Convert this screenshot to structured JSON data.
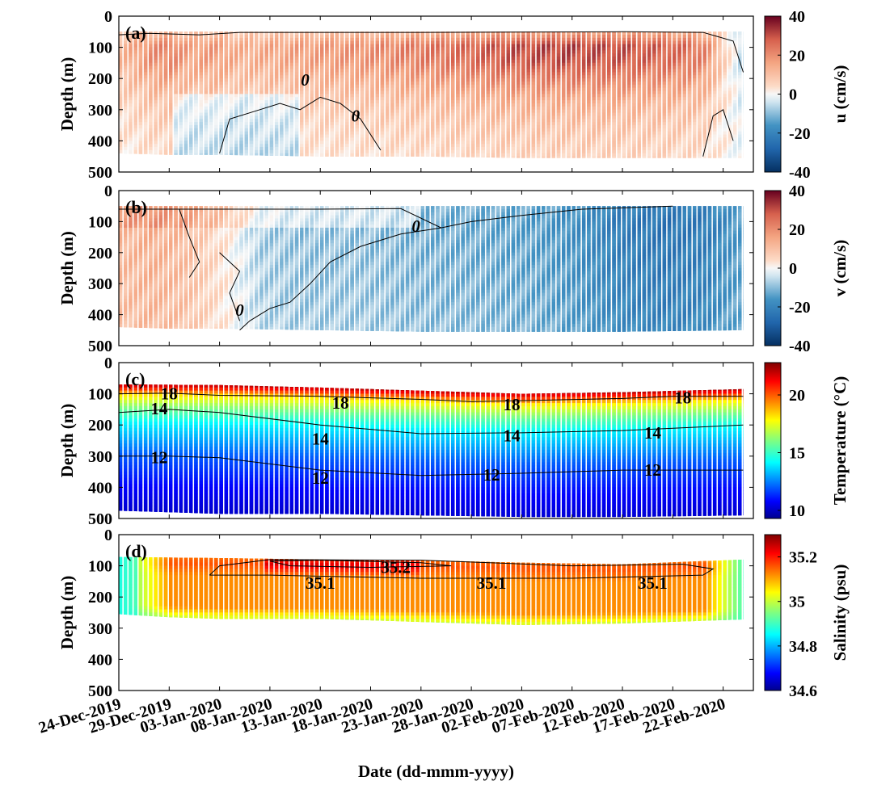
{
  "chart_data": [
    {
      "type": "heatmap",
      "panel_label": "(a)",
      "ylabel": "Depth (m)",
      "yticks": [
        0,
        100,
        200,
        300,
        400,
        500
      ],
      "ylim": [
        0,
        500
      ],
      "colorbar_label": "u (cm/s)",
      "colorbar_ticks": [
        -40,
        -20,
        0,
        20,
        40
      ],
      "clim": [
        -40,
        40
      ],
      "colormap": "red-white-blue",
      "data_top_depth": 50,
      "data_bottom_depth": [
        [
          0,
          440
        ],
        [
          5,
          445
        ],
        [
          10,
          445
        ],
        [
          20,
          450
        ],
        [
          30,
          450
        ],
        [
          40,
          455
        ],
        [
          50,
          455
        ],
        [
          62,
          455
        ]
      ],
      "depth_profile": [
        [
          60,
          0.55
        ],
        [
          100,
          1.0
        ],
        [
          150,
          0.95
        ],
        [
          200,
          0.75
        ],
        [
          280,
          0.45
        ],
        [
          360,
          0.3
        ],
        [
          450,
          0.2
        ]
      ],
      "time_series": [
        [
          0,
          12
        ],
        [
          3,
          20
        ],
        [
          5,
          22
        ],
        [
          7,
          16
        ],
        [
          9,
          18
        ],
        [
          12,
          14
        ],
        [
          16,
          16
        ],
        [
          20,
          18
        ],
        [
          25,
          20
        ],
        [
          30,
          24
        ],
        [
          35,
          27
        ],
        [
          38,
          30
        ],
        [
          41,
          31
        ],
        [
          44,
          32
        ],
        [
          47,
          31
        ],
        [
          50,
          30
        ],
        [
          53,
          28
        ],
        [
          56,
          26
        ],
        [
          58,
          22
        ],
        [
          60,
          6
        ],
        [
          62,
          -8
        ]
      ],
      "contours": [
        {
          "level": 0,
          "labels": [
            {
              "x": 18.5,
              "depth": 205
            },
            {
              "x": 23.5,
              "depth": 320
            }
          ]
        }
      ]
    },
    {
      "type": "heatmap",
      "panel_label": "(b)",
      "ylabel": "Depth (m)",
      "yticks": [
        0,
        100,
        200,
        300,
        400,
        500
      ],
      "ylim": [
        0,
        500
      ],
      "colorbar_label": "v (cm/s)",
      "colorbar_ticks": [
        -40,
        -20,
        0,
        20,
        40
      ],
      "clim": [
        -40,
        40
      ],
      "colormap": "red-white-blue",
      "data_top_depth": 50,
      "data_bottom_depth": [
        [
          0,
          440
        ],
        [
          5,
          445
        ],
        [
          10,
          445
        ],
        [
          20,
          450
        ],
        [
          30,
          455
        ],
        [
          40,
          455
        ],
        [
          50,
          455
        ],
        [
          62,
          450
        ]
      ],
      "depth_profile": [
        [
          60,
          0.9
        ],
        [
          100,
          1.0
        ],
        [
          200,
          0.95
        ],
        [
          300,
          0.9
        ],
        [
          400,
          0.85
        ],
        [
          450,
          0.8
        ]
      ],
      "time_series": [
        [
          0,
          12
        ],
        [
          3,
          14
        ],
        [
          6,
          12
        ],
        [
          8,
          8
        ],
        [
          10,
          4
        ],
        [
          12,
          -2
        ],
        [
          14,
          -8
        ],
        [
          18,
          -10
        ],
        [
          24,
          -10
        ],
        [
          30,
          -12
        ],
        [
          36,
          -13
        ],
        [
          42,
          -15
        ],
        [
          46,
          -18
        ],
        [
          50,
          -22
        ],
        [
          54,
          -24
        ],
        [
          58,
          -22
        ],
        [
          62,
          -14
        ]
      ],
      "contours": [
        {
          "level": 0,
          "labels": [
            {
              "x": 29.5,
              "depth": 115
            },
            {
              "x": 12,
              "depth": 385
            }
          ]
        }
      ]
    },
    {
      "type": "heatmap",
      "panel_label": "(c)",
      "ylabel": "Depth (m)",
      "yticks": [
        0,
        100,
        200,
        300,
        400,
        500
      ],
      "ylim": [
        0,
        500
      ],
      "colorbar_label": "Temperature (°C)",
      "colorbar_ticks": [
        10,
        15,
        20
      ],
      "clim": [
        9.3,
        22.8
      ],
      "colormap": "jet",
      "data_top_depth": [
        [
          0,
          70
        ],
        [
          10,
          72
        ],
        [
          20,
          80
        ],
        [
          30,
          90
        ],
        [
          40,
          100
        ],
        [
          50,
          95
        ],
        [
          62,
          85
        ]
      ],
      "data_bottom_depth": [
        [
          0,
          475
        ],
        [
          10,
          485
        ],
        [
          20,
          485
        ],
        [
          30,
          490
        ],
        [
          40,
          495
        ],
        [
          50,
          495
        ],
        [
          62,
          490
        ]
      ],
      "temperature_profile": [
        [
          70,
          22.5
        ],
        [
          90,
          20.5
        ],
        [
          110,
          18.0
        ],
        [
          130,
          17.0
        ],
        [
          160,
          15.5
        ],
        [
          200,
          14.0
        ],
        [
          250,
          13.0
        ],
        [
          300,
          12.0
        ],
        [
          350,
          11.4
        ],
        [
          400,
          10.8
        ],
        [
          450,
          10.4
        ],
        [
          500,
          10.0
        ]
      ],
      "contours": [
        {
          "level": 18,
          "depth_line": [
            [
              0,
              100
            ],
            [
              5,
              98
            ],
            [
              10,
              105
            ],
            [
              20,
              108
            ],
            [
              30,
              118
            ],
            [
              35,
              125
            ],
            [
              40,
              122
            ],
            [
              50,
              115
            ],
            [
              55,
              108
            ],
            [
              62,
              108
            ]
          ],
          "labels": [
            {
              "x": 5,
              "depth": 100
            },
            {
              "x": 22,
              "depth": 130
            },
            {
              "x": 39,
              "depth": 135
            },
            {
              "x": 56,
              "depth": 113
            }
          ]
        },
        {
          "level": 14,
          "depth_line": [
            [
              0,
              160
            ],
            [
              5,
              150
            ],
            [
              10,
              160
            ],
            [
              20,
              200
            ],
            [
              30,
              228
            ],
            [
              40,
              225
            ],
            [
              50,
              218
            ],
            [
              62,
              200
            ]
          ],
          "labels": [
            {
              "x": 4,
              "depth": 148
            },
            {
              "x": 20,
              "depth": 245
            },
            {
              "x": 39,
              "depth": 235
            },
            {
              "x": 53,
              "depth": 225
            }
          ]
        },
        {
          "level": 12,
          "depth_line": [
            [
              0,
              300
            ],
            [
              5,
              300
            ],
            [
              10,
              305
            ],
            [
              20,
              345
            ],
            [
              30,
              362
            ],
            [
              40,
              355
            ],
            [
              50,
              345
            ],
            [
              62,
              345
            ]
          ],
          "labels": [
            {
              "x": 4,
              "depth": 305
            },
            {
              "x": 20,
              "depth": 370
            },
            {
              "x": 37,
              "depth": 360
            },
            {
              "x": 53,
              "depth": 345
            }
          ]
        }
      ]
    },
    {
      "type": "heatmap",
      "panel_label": "(d)",
      "ylabel": "Depth (m)",
      "yticks": [
        0,
        100,
        200,
        300,
        400,
        500
      ],
      "ylim": [
        0,
        500
      ],
      "colorbar_label": "Salinity (psu)",
      "colorbar_ticks": [
        34.6,
        34.8,
        35,
        35.2
      ],
      "clim": [
        34.6,
        35.3
      ],
      "colormap": "jet",
      "data_top_depth": [
        [
          0,
          72
        ],
        [
          10,
          75
        ],
        [
          20,
          80
        ],
        [
          30,
          82
        ],
        [
          40,
          90
        ],
        [
          50,
          95
        ],
        [
          62,
          80
        ]
      ],
      "data_bottom_depth": [
        [
          0,
          255
        ],
        [
          5,
          265
        ],
        [
          10,
          270
        ],
        [
          20,
          270
        ],
        [
          30,
          280
        ],
        [
          40,
          290
        ],
        [
          50,
          285
        ],
        [
          62,
          272
        ]
      ],
      "contours": [
        {
          "level": 35.1,
          "labels": [
            {
              "x": 20,
              "depth": 155
            },
            {
              "x": 37,
              "depth": 155
            },
            {
              "x": 53,
              "depth": 155
            }
          ]
        },
        {
          "level": 35.2,
          "labels": [
            {
              "x": 27.5,
              "depth": 105
            }
          ]
        }
      ]
    }
  ],
  "x_axis": {
    "xlabel": "Date (dd-mmm-yyyy)",
    "xlim": [
      "24-Dec-2019",
      "25-Feb-2020"
    ],
    "ticks": [
      "24-Dec-2019",
      "29-Dec-2019",
      "03-Jan-2020",
      "08-Jan-2020",
      "13-Jan-2020",
      "18-Jan-2020",
      "23-Jan-2020",
      "28-Jan-2020",
      "02-Feb-2020",
      "07-Feb-2020",
      "12-Feb-2020",
      "17-Feb-2020",
      "22-Feb-2020"
    ]
  }
}
